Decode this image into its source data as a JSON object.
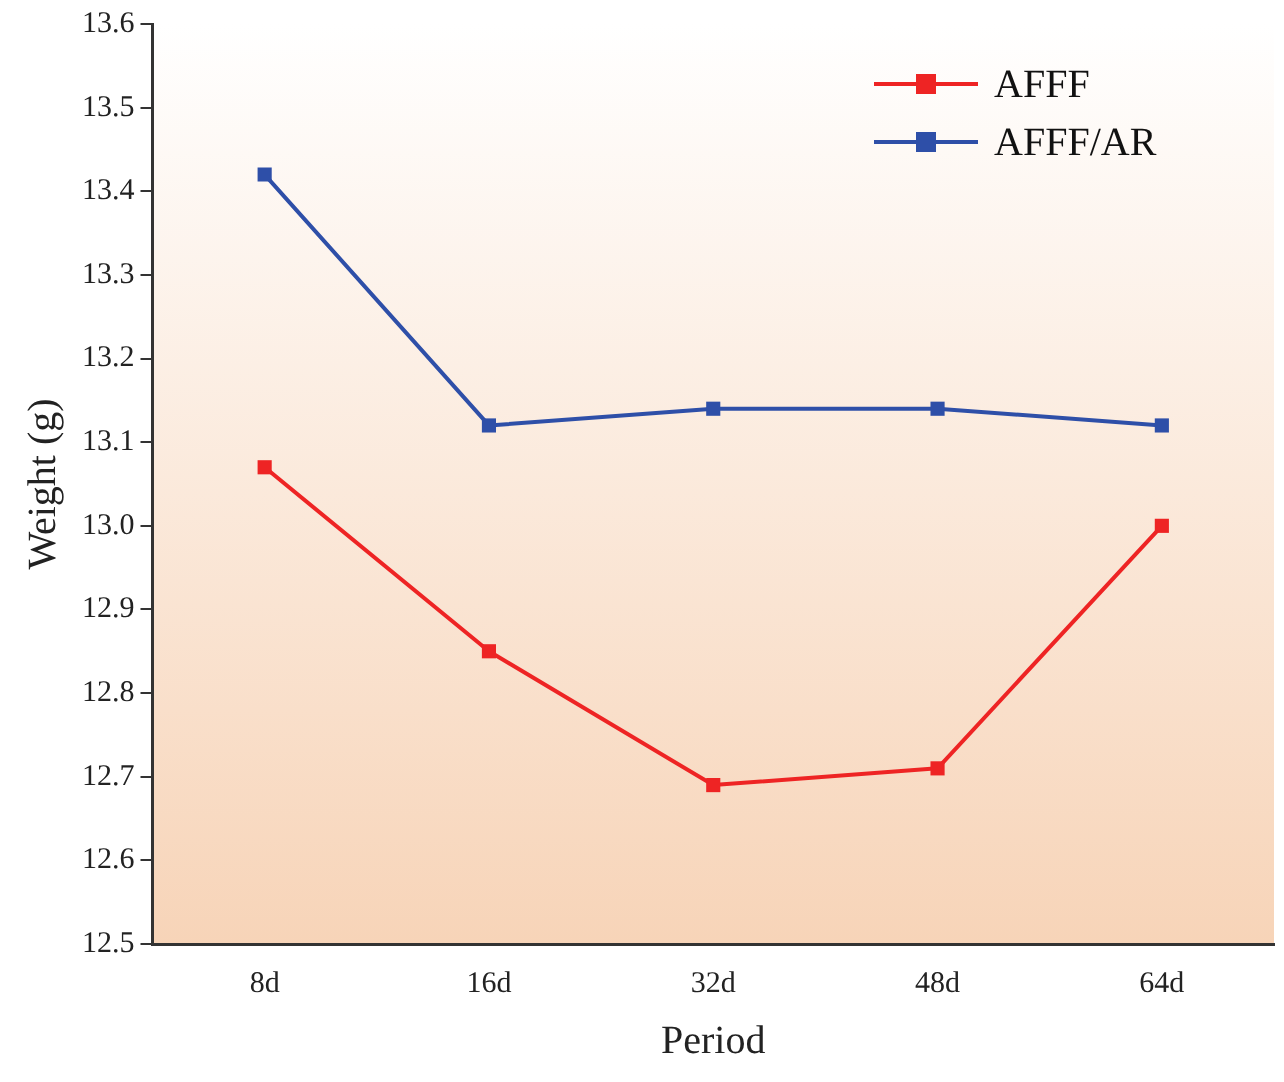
{
  "chart_data": {
    "type": "line",
    "xlabel": "Period",
    "ylabel": "Weight (g)",
    "categories": [
      "8d",
      "16d",
      "32d",
      "48d",
      "64d"
    ],
    "series": [
      {
        "name": "AFFF",
        "color": "#ee2424",
        "values": [
          13.07,
          12.85,
          12.69,
          12.71,
          13.0
        ]
      },
      {
        "name": "AFFF/AR",
        "color": "#2e4fa8",
        "values": [
          13.42,
          13.12,
          13.14,
          13.14,
          13.12
        ]
      }
    ],
    "ylim": [
      12.5,
      13.6
    ],
    "yticks": [
      {
        "value": 12.5,
        "label": "12.5"
      },
      {
        "value": 12.6,
        "label": "12.6"
      },
      {
        "value": 12.7,
        "label": "12.7"
      },
      {
        "value": 12.8,
        "label": "12.8"
      },
      {
        "value": 12.9,
        "label": "12.9"
      },
      {
        "value": 13.0,
        "label": "13.0"
      },
      {
        "value": 13.1,
        "label": "13.1"
      },
      {
        "value": 13.2,
        "label": "13.2"
      },
      {
        "value": 13.3,
        "label": "13.3"
      },
      {
        "value": 13.4,
        "label": "13.4"
      },
      {
        "value": 13.5,
        "label": "13.5"
      },
      {
        "value": 13.6,
        "label": "13.6"
      }
    ],
    "grid": false,
    "legend": "top right",
    "marker": "square",
    "line_style": "solid"
  }
}
